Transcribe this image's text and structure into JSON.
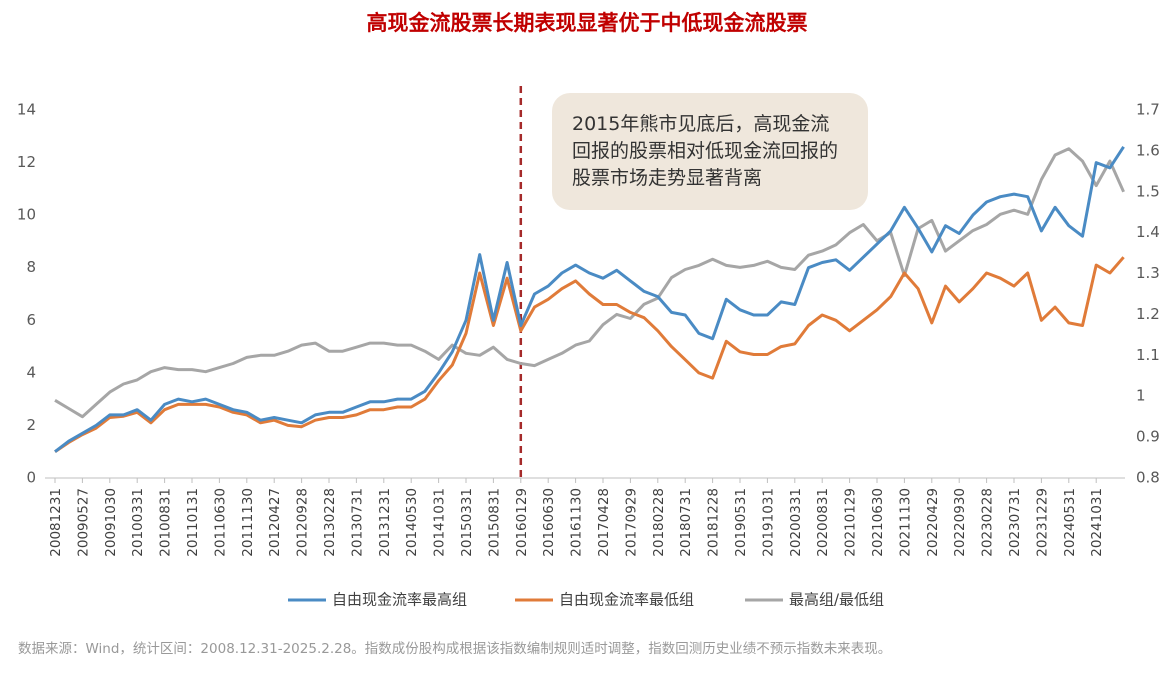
{
  "chart_data": {
    "type": "line",
    "title": "高现金流股票长期表现显著优于中低现金流股票",
    "annotation": "2015年熊市见底后，高现金流回报的股票相对低现金流回报的股票市场走势显著背离",
    "source": "数据来源：Wind，统计区间：2008.12.31-2025.2.28。指数成份股构成根据该指数编制规则适时调整，指数回测历史业绩不预示指数未来表现。",
    "reference_line": {
      "x": "20160129",
      "color": "#a52a2a"
    },
    "categories": [
      "20081231",
      null,
      "20090527",
      null,
      "20091030",
      null,
      "20100331",
      null,
      "20100831",
      null,
      "20110131",
      null,
      "20110630",
      null,
      "20111130",
      null,
      "20120427",
      null,
      "20120928",
      null,
      "20130228",
      null,
      "20130731",
      null,
      "20131231",
      null,
      "20140530",
      null,
      "20141031",
      null,
      "20150331",
      null,
      "20150831",
      null,
      "20160129",
      null,
      "20160630",
      null,
      "20161130",
      null,
      "20170428",
      null,
      "20170929",
      null,
      "20180228",
      null,
      "20180731",
      null,
      "20181228",
      null,
      "20190531",
      null,
      "20191031",
      null,
      "20200331",
      null,
      "20200831",
      null,
      "20210129",
      null,
      "20210630",
      null,
      "20211130",
      null,
      "20220429",
      null,
      "20220930",
      null,
      "20230228",
      null,
      "20230731",
      null,
      "20231229",
      null,
      "20240531",
      null,
      "20241031",
      null,
      null
    ],
    "series": [
      {
        "name": "自由现金流率最高组",
        "color": "#4a8bc4",
        "values": [
          1.0,
          1.4,
          1.7,
          2.0,
          2.4,
          2.4,
          2.6,
          2.2,
          2.8,
          3.0,
          2.9,
          3.0,
          2.8,
          2.6,
          2.5,
          2.2,
          2.3,
          2.2,
          2.1,
          2.4,
          2.5,
          2.5,
          2.7,
          2.9,
          2.9,
          3.0,
          3.0,
          3.3,
          4.0,
          4.8,
          6.0,
          8.5,
          6.0,
          8.2,
          5.8,
          7.0,
          7.3,
          7.8,
          8.1,
          7.8,
          7.6,
          7.9,
          7.5,
          7.1,
          6.9,
          6.3,
          6.2,
          5.5,
          5.3,
          6.8,
          6.4,
          6.2,
          6.2,
          6.7,
          6.6,
          8.0,
          8.2,
          8.3,
          7.9,
          8.4,
          8.9,
          9.4,
          10.3,
          9.5,
          8.6,
          9.6,
          9.3,
          10.0,
          10.5,
          10.7,
          10.8,
          10.7,
          9.4,
          10.3,
          9.6,
          9.2,
          12.0,
          11.8,
          12.6
        ]
      },
      {
        "name": "自由现金流率最低组",
        "color": "#e07b39",
        "values": [
          1.0,
          1.35,
          1.65,
          1.9,
          2.3,
          2.35,
          2.5,
          2.1,
          2.6,
          2.8,
          2.8,
          2.8,
          2.7,
          2.5,
          2.4,
          2.1,
          2.2,
          2.0,
          1.95,
          2.2,
          2.3,
          2.3,
          2.4,
          2.6,
          2.6,
          2.7,
          2.7,
          3.0,
          3.7,
          4.3,
          5.5,
          7.8,
          5.8,
          7.6,
          5.6,
          6.5,
          6.8,
          7.2,
          7.5,
          7.0,
          6.6,
          6.6,
          6.3,
          6.1,
          5.6,
          5.0,
          4.5,
          4.0,
          3.8,
          5.2,
          4.8,
          4.7,
          4.7,
          5.0,
          5.1,
          5.8,
          6.2,
          6.0,
          5.6,
          6.0,
          6.4,
          6.9,
          7.8,
          7.2,
          5.9,
          7.3,
          6.7,
          7.2,
          7.8,
          7.6,
          7.3,
          7.8,
          6.0,
          6.5,
          5.9,
          5.8,
          8.1,
          7.8,
          8.4
        ]
      },
      {
        "name": "最高组/最低组",
        "color": "#a6a6a6",
        "axis": "y2",
        "values": [
          0.99,
          0.97,
          0.95,
          0.98,
          1.01,
          1.03,
          1.04,
          1.06,
          1.07,
          1.065,
          1.065,
          1.06,
          1.07,
          1.08,
          1.095,
          1.1,
          1.1,
          1.11,
          1.125,
          1.13,
          1.11,
          1.11,
          1.12,
          1.13,
          1.13,
          1.125,
          1.125,
          1.11,
          1.09,
          1.125,
          1.105,
          1.1,
          1.12,
          1.09,
          1.08,
          1.075,
          1.09,
          1.105,
          1.125,
          1.135,
          1.175,
          1.2,
          1.19,
          1.225,
          1.24,
          1.29,
          1.31,
          1.32,
          1.335,
          1.32,
          1.315,
          1.32,
          1.33,
          1.315,
          1.31,
          1.345,
          1.355,
          1.37,
          1.4,
          1.42,
          1.38,
          1.4,
          1.295,
          1.41,
          1.43,
          1.355,
          1.38,
          1.405,
          1.42,
          1.445,
          1.455,
          1.445,
          1.53,
          1.59,
          1.605,
          1.575,
          1.515,
          1.575,
          1.5
        ]
      }
    ],
    "ylim": [
      0,
      14
    ],
    "yticks": [
      0,
      2,
      4,
      6,
      8,
      10,
      12,
      14
    ],
    "y2lim": [
      0.8,
      1.7
    ],
    "y2ticks": [
      0.8,
      0.9,
      1,
      1.1,
      1.2,
      1.3,
      1.4,
      1.5,
      1.6,
      1.7
    ],
    "grid": false
  }
}
